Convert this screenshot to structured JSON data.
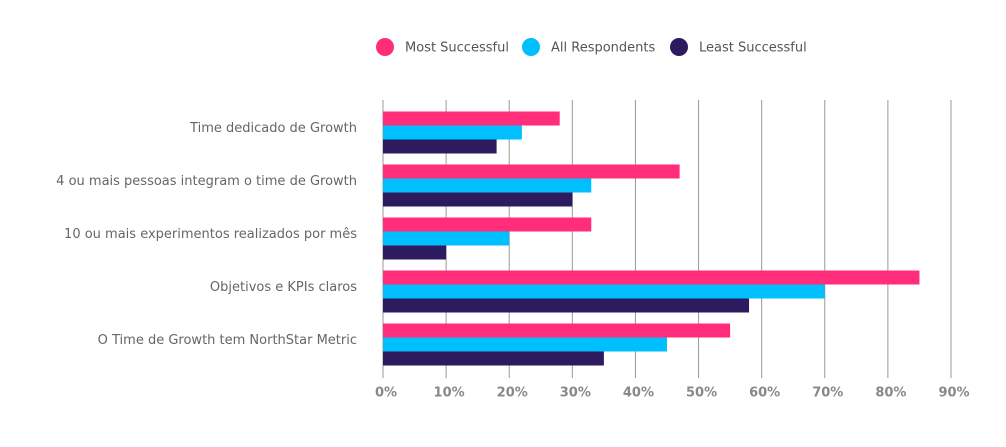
{
  "chart_data": {
    "type": "bar",
    "orientation": "horizontal",
    "categories": [
      "Time dedicado de Growth",
      "4 ou mais pessoas integram o time de Growth",
      "10 ou mais experimentos realizados por mês",
      "Objetivos e KPIs claros",
      "O Time de Growth tem NorthStar Metric"
    ],
    "series": [
      {
        "name": "Most Successful",
        "color": "#ff2d7a",
        "values": [
          28,
          47,
          33,
          85,
          55
        ]
      },
      {
        "name": "All Respondents",
        "color": "#00bfff",
        "values": [
          22,
          33,
          20,
          70,
          45
        ]
      },
      {
        "name": "Least Successful",
        "color": "#2e1a5e",
        "values": [
          18,
          30,
          10,
          58,
          35
        ]
      }
    ],
    "xlim": [
      0,
      90
    ],
    "xticks": [
      {
        "value": 0,
        "label": "0%"
      },
      {
        "value": 10,
        "label": "10%"
      },
      {
        "value": 20,
        "label": "20%"
      },
      {
        "value": 30,
        "label": "30%"
      },
      {
        "value": 40,
        "label": "40%"
      },
      {
        "value": 50,
        "label": "50%"
      },
      {
        "value": 60,
        "label": "60%"
      },
      {
        "value": 70,
        "label": "70%"
      },
      {
        "value": 80,
        "label": "80%"
      },
      {
        "value": 90,
        "label": "90%"
      }
    ],
    "grid": true,
    "legend": "top"
  }
}
